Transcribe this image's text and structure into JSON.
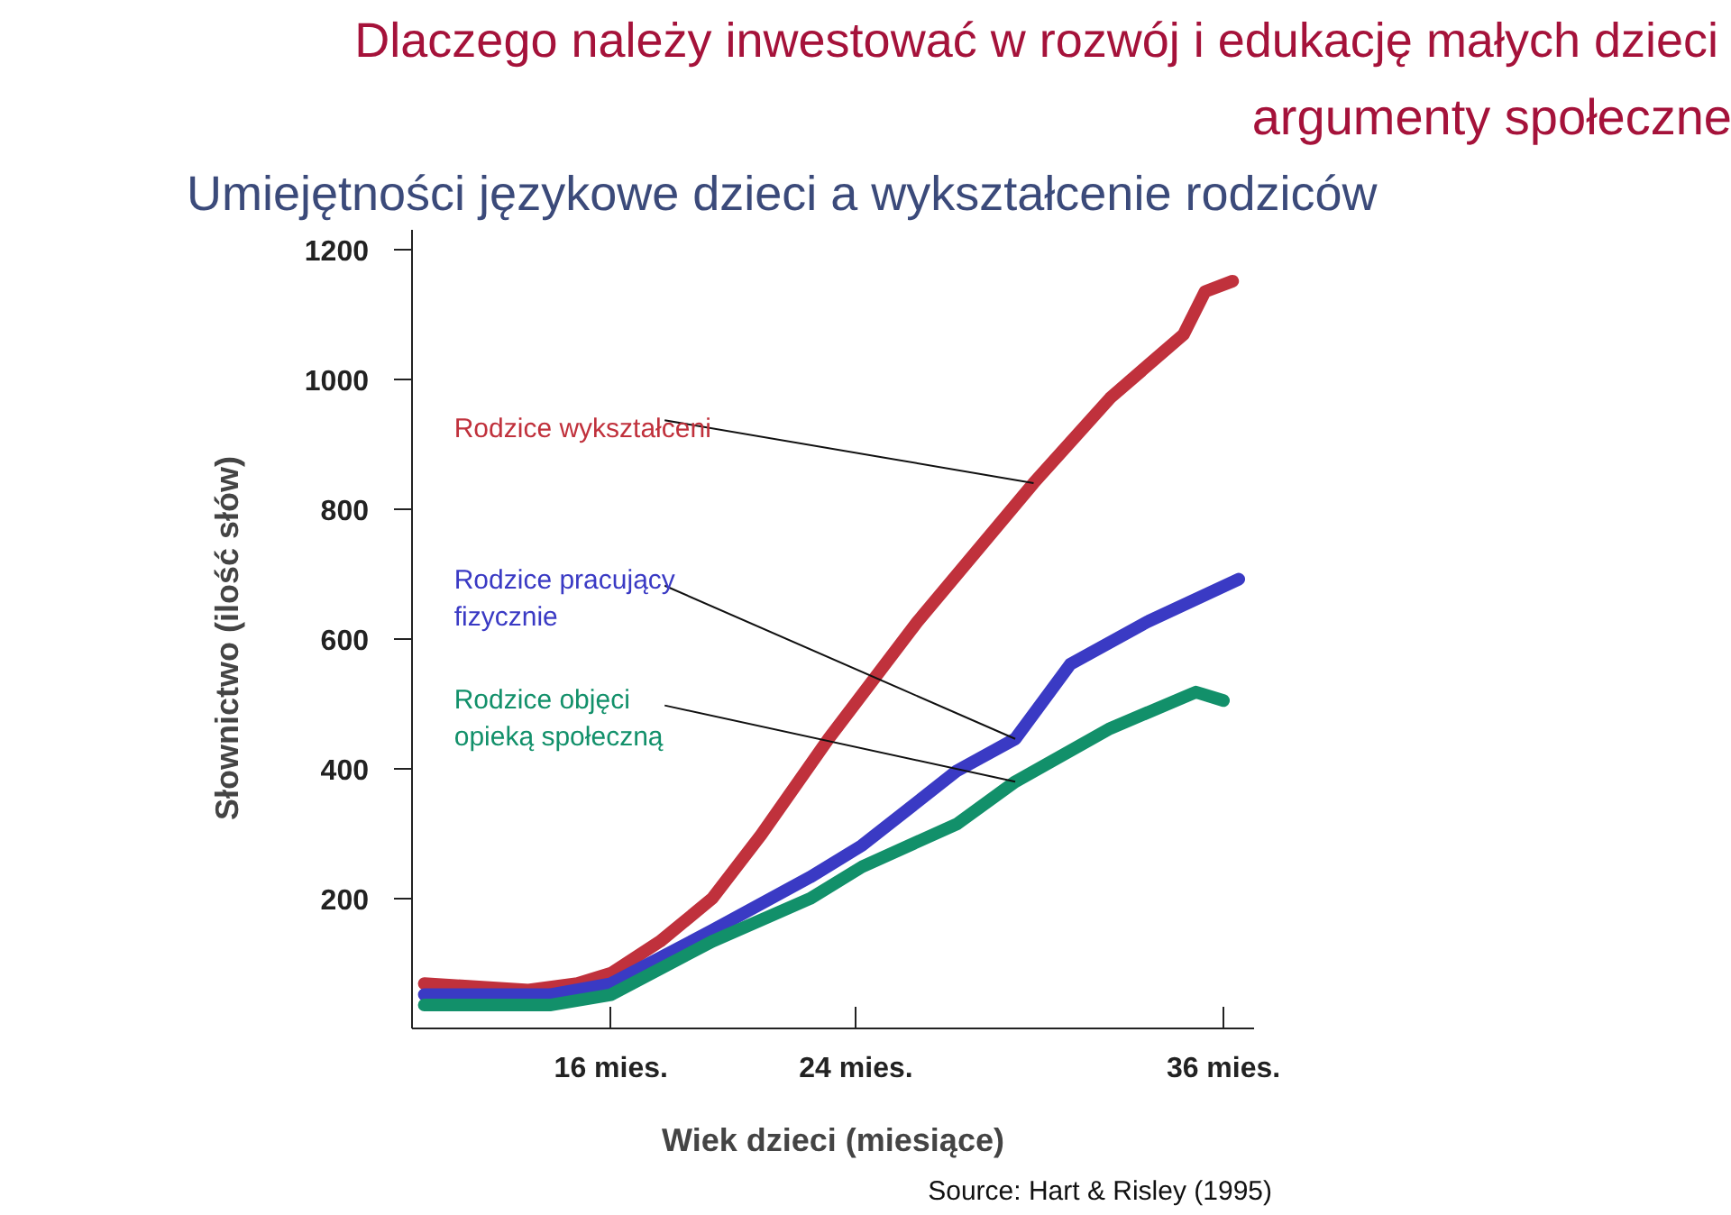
{
  "chart_data": {
    "type": "line",
    "title": "Dlaczego należy inwestować  w rozwój i edukację małych dzieci",
    "subtitle": "argumenty społeczne",
    "annotations": [
      "Umiejętności językowe dzieci a wykształcenie rodziców",
      "Source: Hart & Risley (1995)"
    ],
    "xlabel": "Wiek dzieci (miesiące)",
    "ylabel": "Słownictwo   (ilość słów)",
    "xlim": [
      9.5,
      37
    ],
    "xticks": [
      {
        "value": 16,
        "label": "16 mies."
      },
      {
        "value": 24,
        "label": "24 mies."
      },
      {
        "value": 36,
        "label": "36 mies."
      }
    ],
    "ylim": [
      0,
      1230
    ],
    "yticks": [
      200,
      400,
      600,
      800,
      1000,
      1200
    ],
    "grid": false,
    "marker": "none",
    "line_style": "solid",
    "series": [
      {
        "name": "Rodzice wykształceni",
        "color": "#c0313c",
        "x": [
          9.9,
          13.3,
          14.9,
          16,
          17.6,
          19.3,
          20.9,
          23.1,
          26.0,
          29.8,
          32.3,
          34.7,
          35.4,
          36.3
        ],
        "values": [
          69,
          59,
          69,
          85,
          134,
          200,
          298,
          446,
          626,
          840,
          971,
          1069,
          1135,
          1151
        ]
      },
      {
        "name": "Rodzice pracujący\nfizycznie",
        "color": "#3a3ac4",
        "x": [
          9.9,
          14.0,
          16,
          19.3,
          22.5,
          24.2,
          27.3,
          29.2,
          31.0,
          33.5,
          36.5
        ],
        "values": [
          52,
          52,
          69,
          151,
          233,
          282,
          397,
          446,
          561,
          626,
          692
        ]
      },
      {
        "name": "Rodzice objęci\nopieką społeczną",
        "color": "#12906a",
        "x": [
          9.9,
          14.0,
          16,
          19.3,
          22.5,
          24.2,
          27.3,
          29.2,
          32.3,
          35.1,
          36.0
        ],
        "values": [
          36,
          36,
          52,
          134,
          200,
          249,
          315,
          380,
          462,
          518,
          505
        ]
      }
    ]
  }
}
